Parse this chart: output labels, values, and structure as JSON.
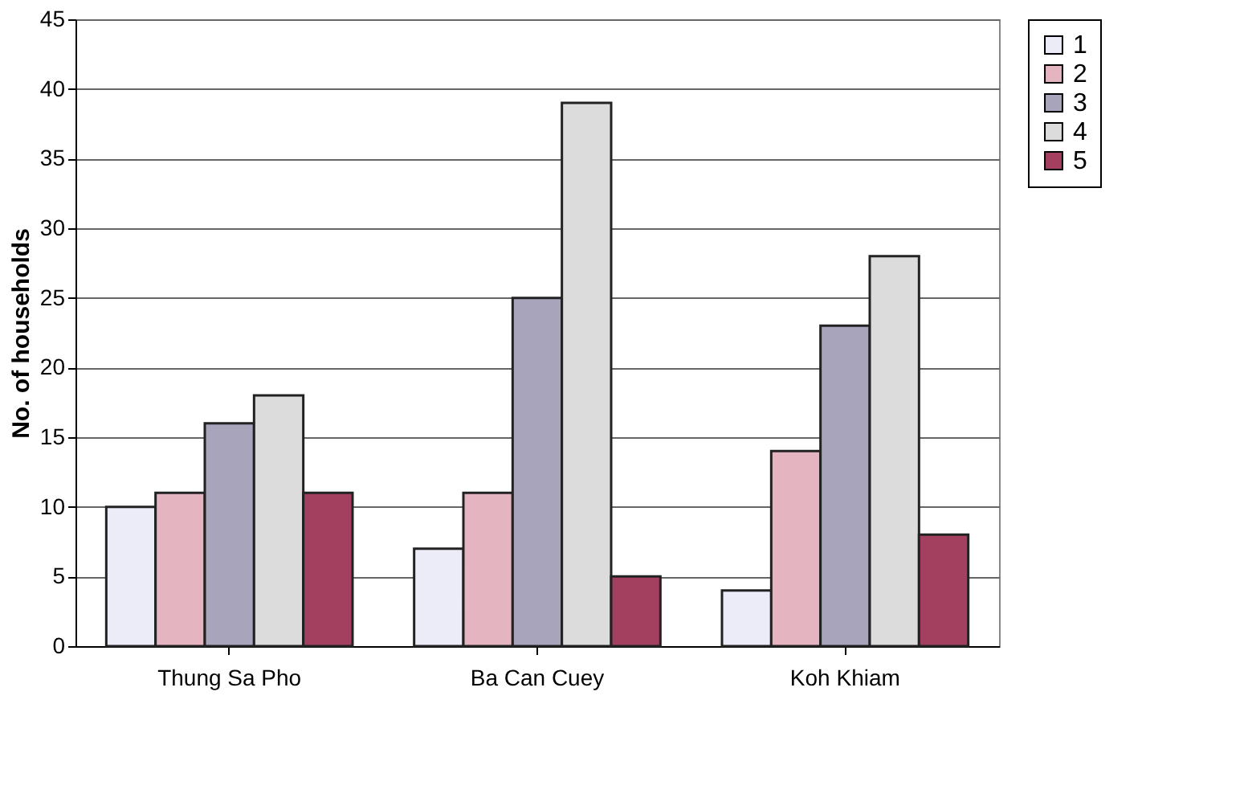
{
  "chart_data": {
    "type": "bar",
    "ylabel": "No. of households",
    "categories": [
      "Thung Sa Pho",
      "Ba Can Cuey",
      "Koh Khiam"
    ],
    "series": [
      {
        "name": "1",
        "color": "#ececf8",
        "values": [
          10,
          7,
          4
        ]
      },
      {
        "name": "2",
        "color": "#e4b4c0",
        "values": [
          11,
          11,
          14
        ]
      },
      {
        "name": "3",
        "color": "#a8a4bc",
        "values": [
          16,
          25,
          23
        ]
      },
      {
        "name": "4",
        "color": "#dcdcdc",
        "values": [
          18,
          39,
          28
        ]
      },
      {
        "name": "5",
        "color": "#a3405f",
        "values": [
          11,
          5,
          8
        ]
      }
    ],
    "ylim": [
      0,
      45
    ],
    "yticks": [
      0,
      5,
      10,
      15,
      20,
      25,
      30,
      35,
      40,
      45
    ],
    "grid": "y",
    "legend": "right"
  }
}
